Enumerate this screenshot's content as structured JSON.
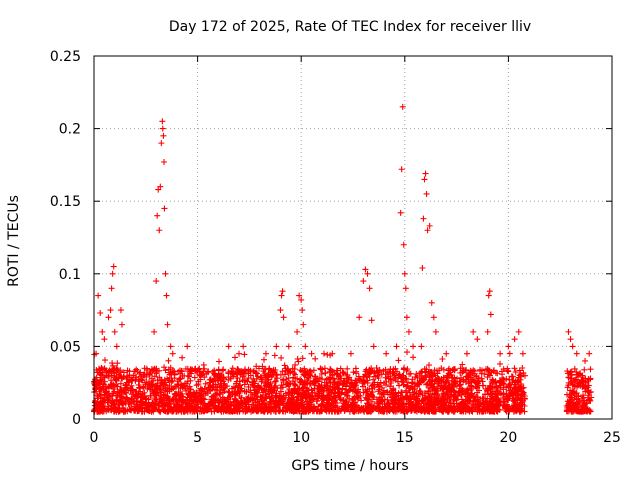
{
  "chart_data": {
    "type": "scatter",
    "title": "Day 172 of 2025, Rate Of TEC Index for receiver lliv",
    "xlabel": "GPS time / hours",
    "ylabel": "ROTI / TECUs",
    "xlim": [
      0,
      25
    ],
    "ylim": [
      0,
      0.25
    ],
    "xticks": [
      0,
      5,
      10,
      15,
      20,
      25
    ],
    "xtick_labels": [
      "0",
      "5",
      "10",
      "15",
      "20",
      "25"
    ],
    "yticks": [
      0,
      0.05,
      0.1,
      0.15,
      0.2,
      0.25
    ],
    "ytick_labels": [
      "0",
      "0.05",
      "0.1",
      "0.15",
      "0.2",
      "0.25"
    ],
    "grid": true,
    "marker": "+",
    "color": "#ff0000",
    "series": [
      {
        "name": "ROTI",
        "data_coverage_hours": [
          [
            0,
            20.8
          ],
          [
            22.8,
            24.0
          ]
        ],
        "typical_range": [
          0.005,
          0.035
        ],
        "points": [
          [
            0.1,
            0.045
          ],
          [
            0.2,
            0.085
          ],
          [
            0.3,
            0.073
          ],
          [
            0.4,
            0.06
          ],
          [
            0.5,
            0.055
          ],
          [
            0.7,
            0.07
          ],
          [
            0.8,
            0.075
          ],
          [
            0.85,
            0.09
          ],
          [
            0.9,
            0.1
          ],
          [
            0.95,
            0.105
          ],
          [
            1.0,
            0.06
          ],
          [
            1.1,
            0.05
          ],
          [
            1.3,
            0.075
          ],
          [
            1.35,
            0.065
          ],
          [
            2.9,
            0.06
          ],
          [
            3.0,
            0.095
          ],
          [
            3.05,
            0.14
          ],
          [
            3.1,
            0.158
          ],
          [
            3.15,
            0.13
          ],
          [
            3.2,
            0.16
          ],
          [
            3.25,
            0.19
          ],
          [
            3.3,
            0.205
          ],
          [
            3.32,
            0.2
          ],
          [
            3.35,
            0.195
          ],
          [
            3.38,
            0.177
          ],
          [
            3.4,
            0.145
          ],
          [
            3.45,
            0.1
          ],
          [
            3.5,
            0.085
          ],
          [
            3.55,
            0.065
          ],
          [
            3.7,
            0.05
          ],
          [
            3.8,
            0.045
          ],
          [
            4.5,
            0.05
          ],
          [
            6.5,
            0.05
          ],
          [
            7.0,
            0.045
          ],
          [
            7.2,
            0.05
          ],
          [
            8.3,
            0.045
          ],
          [
            8.8,
            0.05
          ],
          [
            9.0,
            0.075
          ],
          [
            9.05,
            0.085
          ],
          [
            9.1,
            0.088
          ],
          [
            9.15,
            0.07
          ],
          [
            9.4,
            0.05
          ],
          [
            9.8,
            0.06
          ],
          [
            9.9,
            0.085
          ],
          [
            10.0,
            0.082
          ],
          [
            10.05,
            0.075
          ],
          [
            10.1,
            0.065
          ],
          [
            10.2,
            0.05
          ],
          [
            10.5,
            0.045
          ],
          [
            11.1,
            0.045
          ],
          [
            11.5,
            0.045
          ],
          [
            12.4,
            0.045
          ],
          [
            12.8,
            0.07
          ],
          [
            13.0,
            0.095
          ],
          [
            13.1,
            0.103
          ],
          [
            13.2,
            0.1
          ],
          [
            13.3,
            0.09
          ],
          [
            13.4,
            0.068
          ],
          [
            13.5,
            0.05
          ],
          [
            14.1,
            0.045
          ],
          [
            14.6,
            0.05
          ],
          [
            14.8,
            0.142
          ],
          [
            14.85,
            0.172
          ],
          [
            14.9,
            0.215
          ],
          [
            14.95,
            0.12
          ],
          [
            15.0,
            0.1
          ],
          [
            15.05,
            0.09
          ],
          [
            15.1,
            0.07
          ],
          [
            15.2,
            0.06
          ],
          [
            15.4,
            0.05
          ],
          [
            15.8,
            0.05
          ],
          [
            15.85,
            0.104
          ],
          [
            15.9,
            0.138
          ],
          [
            15.95,
            0.165
          ],
          [
            16.0,
            0.169
          ],
          [
            16.05,
            0.155
          ],
          [
            16.1,
            0.13
          ],
          [
            16.2,
            0.133
          ],
          [
            16.3,
            0.08
          ],
          [
            16.4,
            0.07
          ],
          [
            16.5,
            0.06
          ],
          [
            17.0,
            0.045
          ],
          [
            18.0,
            0.045
          ],
          [
            18.3,
            0.06
          ],
          [
            18.5,
            0.055
          ],
          [
            19.0,
            0.06
          ],
          [
            19.05,
            0.085
          ],
          [
            19.1,
            0.088
          ],
          [
            19.15,
            0.072
          ],
          [
            19.6,
            0.045
          ],
          [
            20.0,
            0.05
          ],
          [
            20.3,
            0.055
          ],
          [
            20.5,
            0.06
          ],
          [
            20.7,
            0.045
          ],
          [
            22.9,
            0.06
          ],
          [
            23.0,
            0.055
          ],
          [
            23.1,
            0.05
          ],
          [
            23.3,
            0.045
          ],
          [
            23.7,
            0.04
          ],
          [
            23.9,
            0.045
          ]
        ]
      }
    ]
  }
}
